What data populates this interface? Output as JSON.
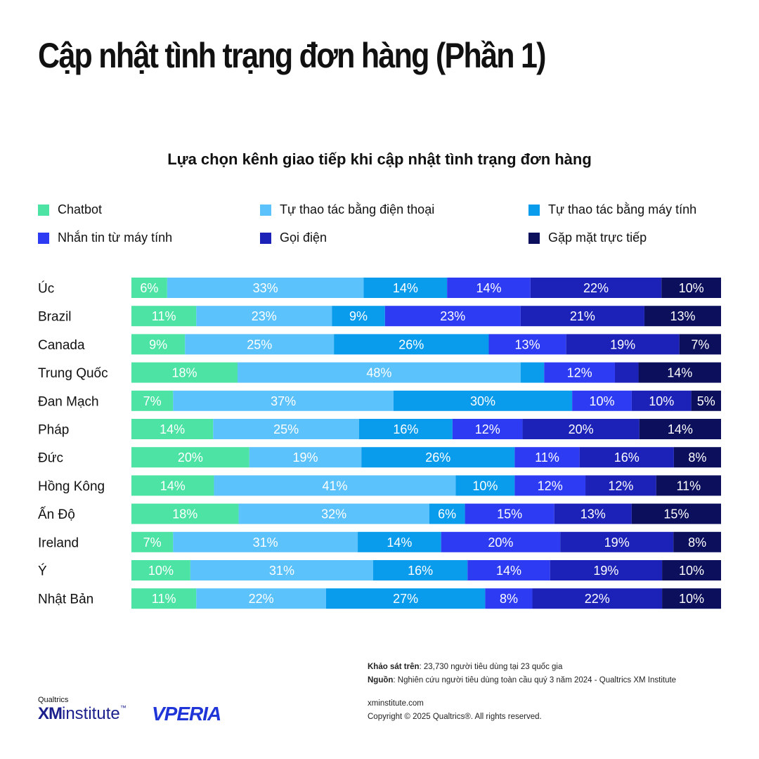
{
  "page": {
    "title": "Cập nhật tình trạng đơn hàng (Phần 1)"
  },
  "chart_data": {
    "type": "bar",
    "orientation": "horizontal",
    "stacked": true,
    "title": "Lựa chọn kênh giao tiếp khi cập nhật tình trạng đơn hàng",
    "legend_position": "top",
    "categories": [
      "Úc",
      "Brazil",
      "Canada",
      "Trung Quốc",
      "Đan Mạch",
      "Pháp",
      "Đức",
      "Hồng Kông",
      "Ấn Độ",
      "Ireland",
      "Ý",
      "Nhật Bản"
    ],
    "series": [
      {
        "name": "Chatbot",
        "color": "#4de3a4",
        "values": [
          6,
          11,
          9,
          18,
          7,
          14,
          20,
          14,
          18,
          7,
          10,
          11
        ]
      },
      {
        "name": "Tự thao tác bằng điện thoại",
        "color": "#5bc2fb",
        "values": [
          33,
          23,
          25,
          48,
          37,
          25,
          19,
          41,
          32,
          31,
          31,
          22
        ]
      },
      {
        "name": "Tự thao tác bằng máy tính",
        "color": "#0a9cec",
        "values": [
          14,
          9,
          26,
          4,
          30,
          16,
          26,
          10,
          6,
          14,
          16,
          27
        ]
      },
      {
        "name": "Nhắn tin từ máy tính",
        "color": "#2d3bf2",
        "values": [
          14,
          23,
          13,
          12,
          10,
          12,
          11,
          12,
          15,
          20,
          14,
          8
        ]
      },
      {
        "name": "Gọi điện",
        "color": "#1c22b8",
        "values": [
          22,
          21,
          19,
          4,
          10,
          20,
          16,
          12,
          13,
          19,
          19,
          22
        ]
      },
      {
        "name": "Gặp mặt trực tiếp",
        "color": "#0b0f5c",
        "values": [
          10,
          13,
          7,
          14,
          5,
          14,
          8,
          11,
          15,
          8,
          10,
          10
        ]
      }
    ],
    "labels": [
      [
        "6%",
        "33%",
        "14%",
        "14%",
        "22%",
        "10%"
      ],
      [
        "11%",
        "23%",
        "9%",
        "23%",
        "21%",
        "13%"
      ],
      [
        "9%",
        "25%",
        "26%",
        "13%",
        "19%",
        "7%"
      ],
      [
        "18%",
        "48%",
        "",
        "12%",
        "",
        "14%"
      ],
      [
        "7%",
        "37%",
        "30%",
        "10%",
        "10%",
        "5%"
      ],
      [
        "14%",
        "25%",
        "16%",
        "12%",
        "20%",
        "14%"
      ],
      [
        "20%",
        "19%",
        "26%",
        "11%",
        "16%",
        "8%"
      ],
      [
        "14%",
        "41%",
        "10%",
        "12%",
        "12%",
        "11%"
      ],
      [
        "18%",
        "32%",
        "6%",
        "15%",
        "13%",
        "15%"
      ],
      [
        "7%",
        "31%",
        "14%",
        "20%",
        "19%",
        "8%"
      ],
      [
        "10%",
        "31%",
        "16%",
        "14%",
        "19%",
        "10%"
      ],
      [
        "11%",
        "22%",
        "27%",
        "8%",
        "22%",
        "10%"
      ]
    ]
  },
  "footer": {
    "survey_label": "Khảo sát trên",
    "survey_text": ": 23,730 người tiêu dùng tại 23 quốc gia",
    "source_label": "Nguồn",
    "source_text": ": Nghiên cứu người tiêu dùng toàn cầu quý 3 năm 2024 - Qualtrics XM Institute",
    "website": "xminstitute.com",
    "copyright": "Copyright © 2025 Qualtrics®. All rights reserved."
  },
  "logos": {
    "qualtrics_small": "Qualtrics",
    "xm": "XM",
    "institute": "institute",
    "tm": "™",
    "vperia": "VPERIA"
  }
}
